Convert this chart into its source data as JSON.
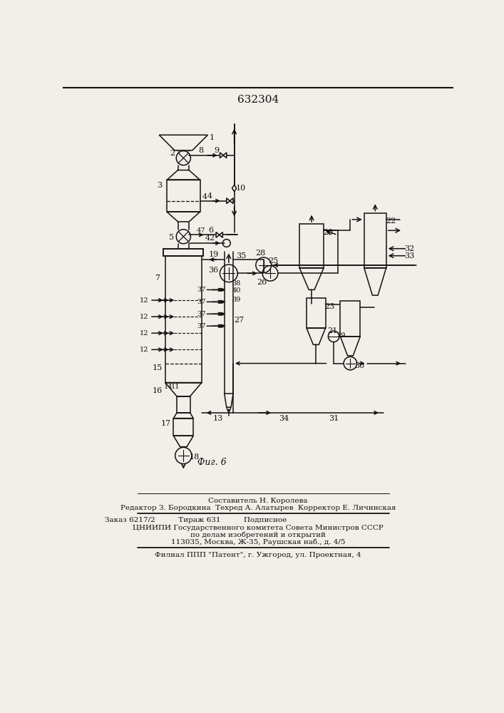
{
  "title": "632304",
  "fig_caption": "Фиг. 6",
  "bg_color": "#f2efe9",
  "lw": 1.1,
  "footer": {
    "line1": "Составитель Н. Королева",
    "line2": "Редактор З. Бородкина  Техред А. Алатырев  Корректор Е. Личинская",
    "line3": "Заказ 6217/2          Тираж 631          Подписное",
    "line4": "ЦНИИПИ Государственного комитета Совета Министров СССР",
    "line5": "по делам изобретений и открытий",
    "line6": "113035, Москва, Ж-35, Раушская наб., д. 4/5",
    "line7": "Филиал ППП \"Патент\", г. Ужгород, ул. Проектная, 4"
  }
}
